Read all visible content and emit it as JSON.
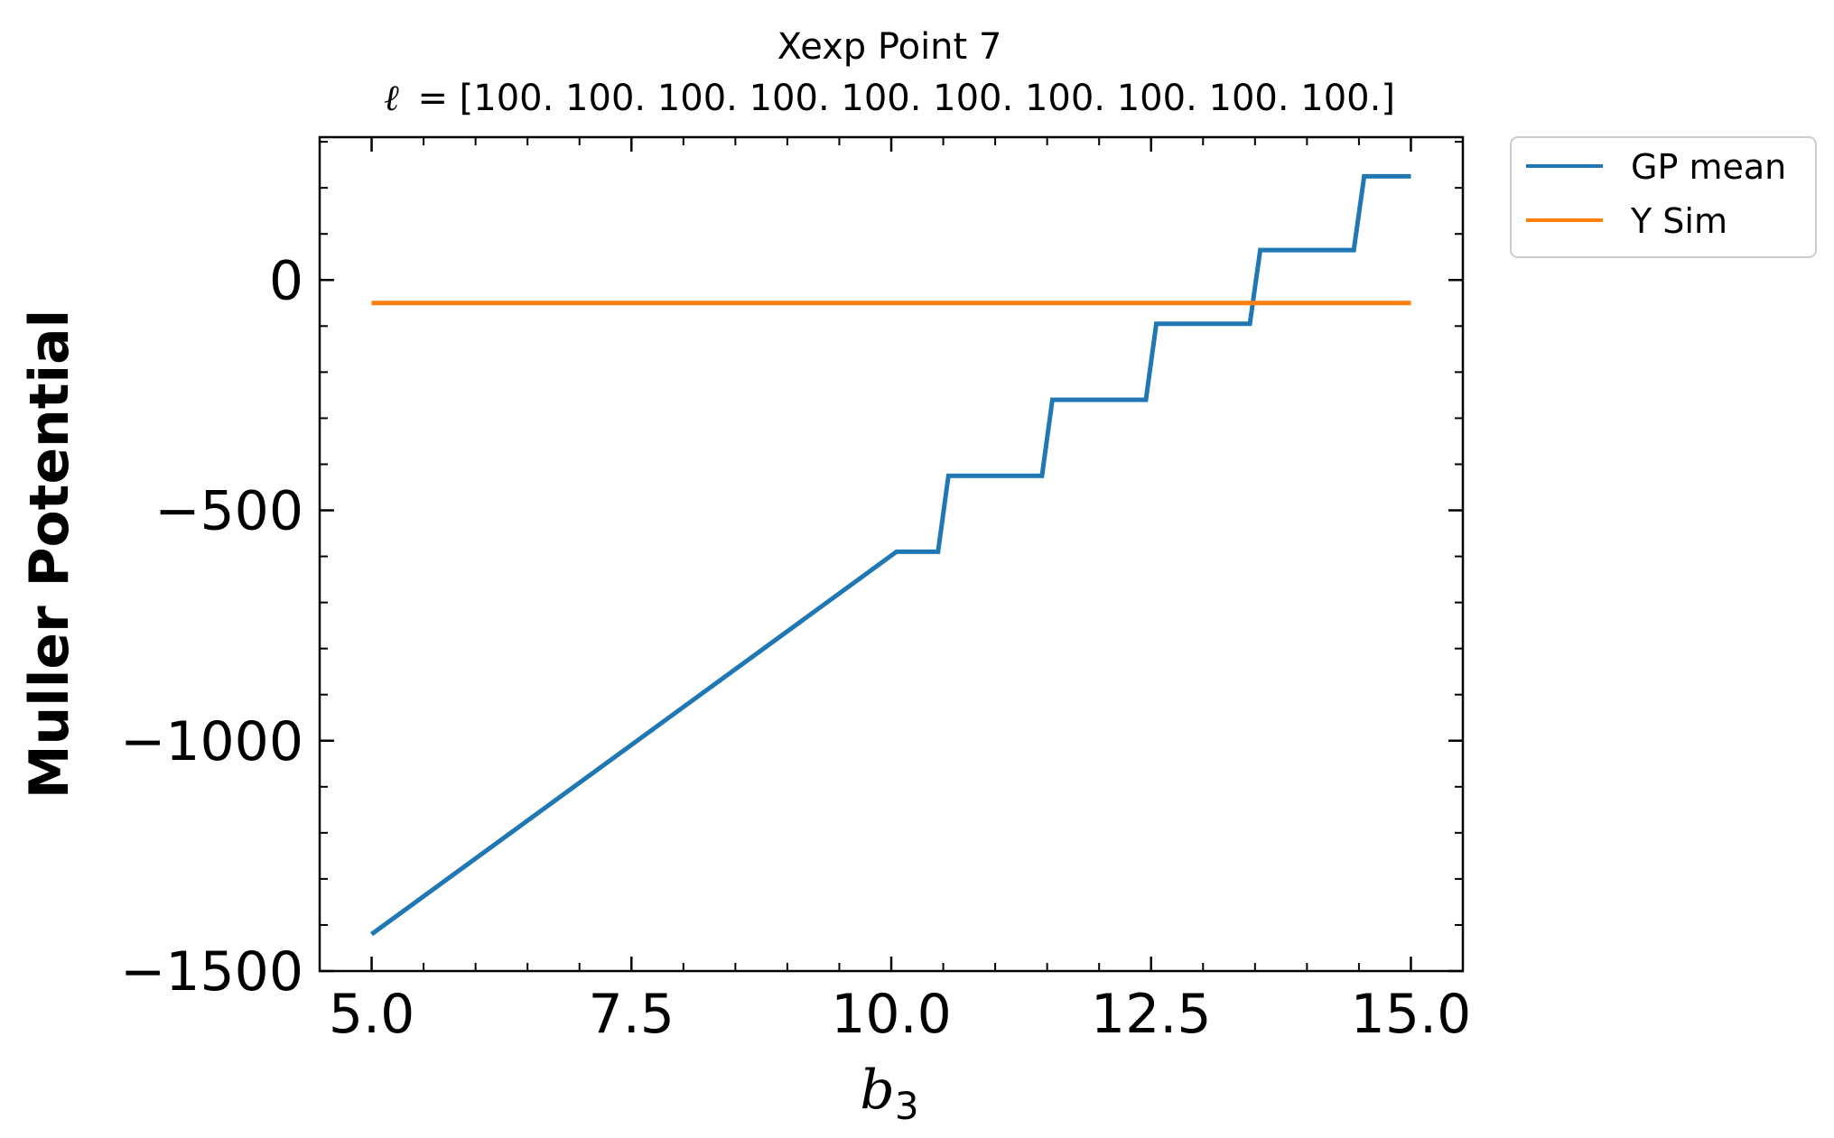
{
  "chart_data": {
    "type": "line",
    "title": "Xexp Point 7",
    "subtitle": "ℓ = [100. 100. 100. 100. 100. 100. 100. 100. 100. 100.]",
    "subtitle_symbol": "ℓ",
    "subtitle_text": "= [100. 100. 100. 100. 100. 100. 100. 100. 100. 100.]",
    "xlabel": "b",
    "xlabel_subscript": "3",
    "ylabel": "Muller Potential",
    "xlim": [
      4.5,
      15.5
    ],
    "ylim": [
      -1500,
      310
    ],
    "xticks": [
      5.0,
      7.5,
      10.0,
      12.5,
      15.0
    ],
    "xtick_labels": [
      "5.0",
      "7.5",
      "10.0",
      "12.5",
      "15.0"
    ],
    "yticks": [
      -1500,
      -1000,
      -500,
      0
    ],
    "ytick_labels": [
      "−1500",
      "−1000",
      "−500",
      "0"
    ],
    "grid": false,
    "legend_position": "outside-top-right",
    "series": [
      {
        "name": "GP mean",
        "color": "#1f77b4",
        "x": [
          5.0,
          10.05,
          10.45,
          10.55,
          11.45,
          11.55,
          12.45,
          12.55,
          13.45,
          13.55,
          14.45,
          14.55,
          15.0
        ],
        "y": [
          -1420,
          -590,
          -590,
          -425,
          -425,
          -260,
          -260,
          -95,
          -95,
          65,
          65,
          225,
          225
        ]
      },
      {
        "name": "Y Sim",
        "color": "#ff7f0e",
        "x": [
          5.0,
          15.0
        ],
        "y": [
          -50,
          -50
        ]
      }
    ]
  }
}
